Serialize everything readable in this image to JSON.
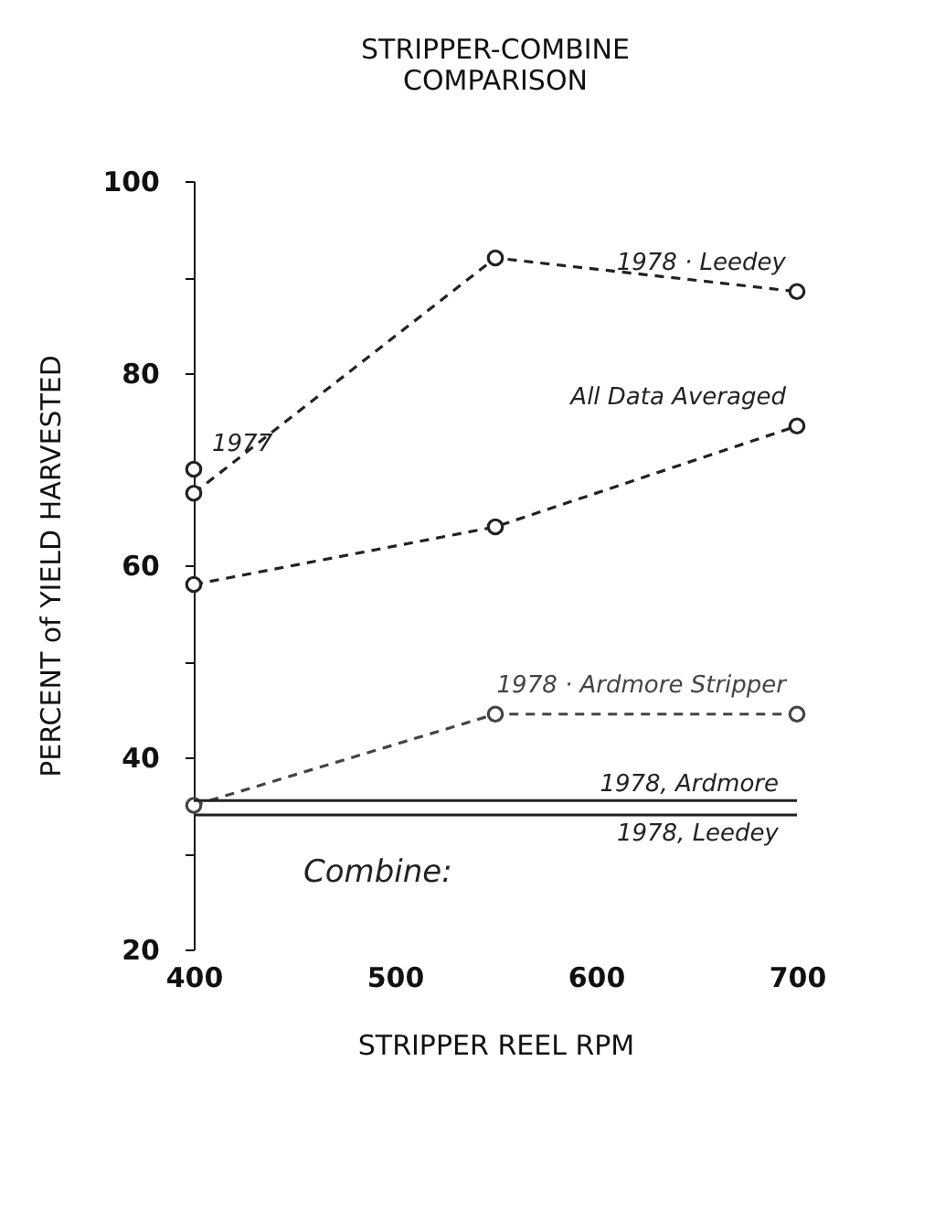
{
  "chart_data": {
    "type": "line",
    "title": "STRIPPER-COMBINE\nCOMPARISON",
    "xlabel": "STRIPPER  REEL  RPM",
    "ylabel": "PERCENT of YIELD HARVESTED",
    "xlim": [
      400,
      700
    ],
    "xticks": [
      400,
      500,
      600,
      700
    ],
    "ylim": [
      20,
      100
    ],
    "yticks": [
      20,
      {
        "value": 30,
        "label": null
      },
      40,
      {
        "value": 50,
        "label": null
      },
      60,
      {
        "value": 70,
        "label": null
      },
      80,
      {
        "value": 90,
        "label": null
      },
      100
    ],
    "grid": false,
    "legend": false,
    "series": [
      {
        "name": "1978 · Leedey",
        "color": "#222222",
        "x": [
          400,
          550,
          700
        ],
        "values": [
          67.5,
          92,
          88.5
        ],
        "marker": "circle",
        "line_style": "dashed"
      },
      {
        "name": "1977",
        "color": "#222222",
        "type": "scatter",
        "x": [
          400
        ],
        "values": [
          70
        ],
        "marker": "circle"
      },
      {
        "name": "All Data Averaged",
        "color": "#222222",
        "x": [
          400,
          550,
          700
        ],
        "values": [
          58,
          64,
          74.5
        ],
        "marker": "circle",
        "line_style": "dashed"
      },
      {
        "name": "1978 · Ardmore  Stripper",
        "color": "#444444",
        "x": [
          400,
          550,
          700
        ],
        "values": [
          35,
          44.5,
          44.5
        ],
        "marker": "circle",
        "line_style": "dashed"
      },
      {
        "name": "1978, Ardmore",
        "color": "#222222",
        "x": [
          400,
          700
        ],
        "values": [
          35.5,
          35.5
        ],
        "marker": "none",
        "line_style": "solid"
      },
      {
        "name": "1978, Leedey",
        "color": "#222222",
        "x": [
          400,
          700
        ],
        "values": [
          34,
          34
        ],
        "marker": "none",
        "line_style": "solid"
      }
    ],
    "annotations": [
      "Combine:"
    ]
  }
}
